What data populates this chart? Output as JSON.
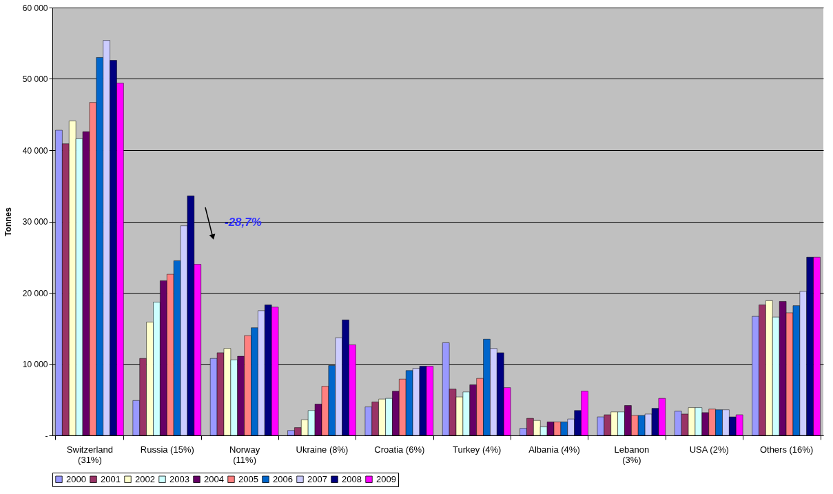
{
  "chart_data": {
    "type": "bar",
    "ylabel": "Tonnes",
    "categories": [
      "Switzerland\n(31%)",
      "Russia (15%)",
      "Norway\n(11%)",
      "Ukraine (8%)",
      "Croatia (6%)",
      "Turkey (4%)",
      "Albania (4%)",
      "Lebanon\n(3%)",
      "USA (2%)",
      "Others (16%)"
    ],
    "series": [
      {
        "name": "2000",
        "color": "#9999ff",
        "values": [
          42800,
          4900,
          10800,
          700,
          4000,
          13000,
          1000,
          2600,
          3400,
          16700
        ]
      },
      {
        "name": "2001",
        "color": "#993366",
        "values": [
          40900,
          10800,
          11600,
          1100,
          4700,
          6500,
          2400,
          2900,
          3000,
          18300
        ]
      },
      {
        "name": "2002",
        "color": "#ffffcc",
        "values": [
          44100,
          15900,
          12200,
          2200,
          5100,
          5400,
          2100,
          3300,
          3900,
          18900
        ]
      },
      {
        "name": "2003",
        "color": "#ccffff",
        "values": [
          41600,
          18700,
          10600,
          3500,
          5200,
          6100,
          1200,
          3300,
          3900,
          16600
        ]
      },
      {
        "name": "2004",
        "color": "#660066",
        "values": [
          42600,
          21700,
          11100,
          4400,
          6200,
          7100,
          1900,
          4200,
          3200,
          18800
        ]
      },
      {
        "name": "2005",
        "color": "#ff8080",
        "values": [
          46700,
          22600,
          14000,
          6900,
          7900,
          8000,
          1900,
          2800,
          3700,
          17200
        ]
      },
      {
        "name": "2006",
        "color": "#0066cc",
        "values": [
          53000,
          24500,
          15100,
          9800,
          9100,
          13500,
          1900,
          2800,
          3600,
          18200
        ]
      },
      {
        "name": "2007",
        "color": "#ccccff",
        "values": [
          55400,
          29400,
          17500,
          13700,
          9400,
          12200,
          2300,
          3000,
          3600,
          20200
        ]
      },
      {
        "name": "2008",
        "color": "#000080",
        "values": [
          52600,
          33600,
          18300,
          16200,
          9700,
          11600,
          3500,
          3800,
          2600,
          25000
        ]
      },
      {
        "name": "2009",
        "color": "#ff00ff",
        "values": [
          49400,
          24000,
          18000,
          12700,
          9700,
          6700,
          6200,
          5200,
          2900,
          25000
        ]
      }
    ],
    "ylim": [
      0,
      60000
    ],
    "yticks": [
      {
        "value": 0,
        "label": "-"
      },
      {
        "value": 10000,
        "label": "10 000"
      },
      {
        "value": 20000,
        "label": "20 000"
      },
      {
        "value": 30000,
        "label": "30 000"
      },
      {
        "value": 40000,
        "label": "40 000"
      },
      {
        "value": 50000,
        "label": "50 000"
      },
      {
        "value": 60000,
        "label": "60 000"
      }
    ],
    "grid": "y",
    "legend": "bottom",
    "annotations": [
      "-28,7%"
    ]
  }
}
